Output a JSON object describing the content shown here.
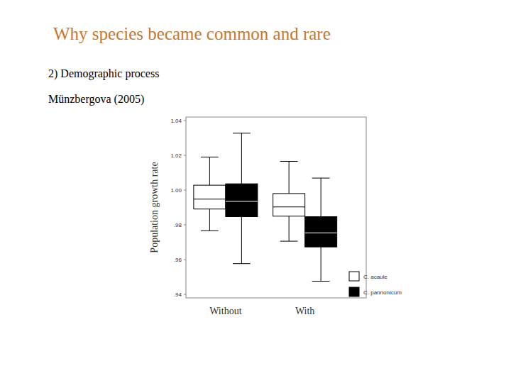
{
  "slide": {
    "title": "Why species became common and rare",
    "subtitle": "2) Demographic process",
    "citation": "Münzbergova (2005)"
  },
  "chart_data": {
    "type": "box",
    "ylabel": "Population growth rate",
    "categories": [
      "Without",
      "With"
    ],
    "series": [
      {
        "name": "C. acaule",
        "color": "#ffffff",
        "min": [
          0.9766,
          0.9706
        ],
        "q1": [
          0.9891,
          0.985
        ],
        "median": [
          0.9948,
          0.9903
        ],
        "q3": [
          1.0028,
          0.998
        ],
        "max": [
          1.019,
          1.0165
        ]
      },
      {
        "name": "C. pannonicum",
        "color": "#000000",
        "min": [
          0.9577,
          0.9476
        ],
        "q1": [
          0.9847,
          0.9673
        ],
        "median": [
          0.9935,
          0.9754
        ],
        "q3": [
          1.0036,
          0.9847
        ],
        "max": [
          1.0327,
          1.0069
        ]
      }
    ],
    "ylim": [
      0.938,
      1.042
    ],
    "yticks": [
      {
        "value": 0.94,
        "label": ".94"
      },
      {
        "value": 0.96,
        "label": ".96"
      },
      {
        "value": 0.98,
        "label": ".98"
      },
      {
        "value": 1.0,
        "label": "1.00"
      },
      1.02,
      1.04
    ],
    "grid": false,
    "legend": "bottom-right"
  }
}
